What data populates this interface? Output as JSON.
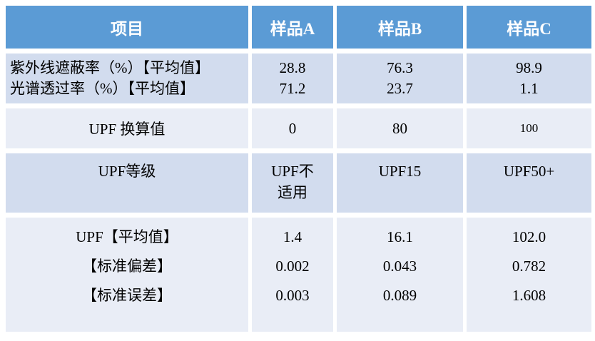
{
  "colors": {
    "header_bg": "#5b9bd5",
    "header_text": "#ffffff",
    "band_dark": "#d2dcee",
    "band_light": "#e9edf6",
    "body_text": "#000000"
  },
  "table": {
    "columns": {
      "item": "项目",
      "sample_a": "样品A",
      "sample_b": "样品B",
      "sample_c": "样品C"
    },
    "uv_rates": {
      "label_line1": "紫外线遮蔽率（%）【平均值】",
      "label_line2": "光谱透过率（%）【平均值】",
      "a1": "28.8",
      "a2": "71.2",
      "b1": "76.3",
      "b2": "23.7",
      "c1": "98.9",
      "c2": "1.1"
    },
    "upf_conversion": {
      "label": "UPF 换算值",
      "a": "0",
      "b": "80",
      "c": "100"
    },
    "upf_grade": {
      "label": "UPF等级",
      "a": "UPF不适用",
      "b": "UPF15",
      "c": "UPF50+"
    },
    "upf_stats": {
      "label_line1": "UPF【平均值】",
      "label_line2": "【标准偏差】",
      "label_line3": "【标准误差】",
      "a1": "1.4",
      "a2": "0.002",
      "a3": "0.003",
      "b1": "16.1",
      "b2": "0.043",
      "b3": "0.089",
      "c1": "102.0",
      "c2": "0.782",
      "c3": "1.608"
    }
  }
}
